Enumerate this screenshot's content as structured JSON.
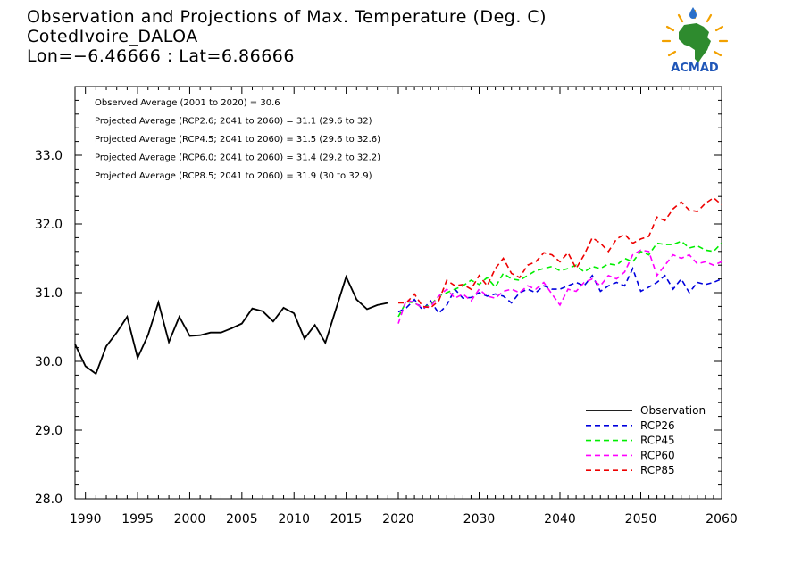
{
  "title": {
    "line1": "Observation and Projections of Max. Temperature (Deg. C)",
    "line2": "CotedIvoire_DALOA",
    "line3": "Lon=−6.46666 : Lat=6.86666"
  },
  "logo": {
    "text": "ACMAD",
    "icon": "africa-map-logo-icon"
  },
  "annotations": [
    "Observed Average (2001 to 2020) = 30.6",
    "Projected Average (RCP2.6; 2041 to 2060) = 31.1 (29.6 to 32)",
    "Projected Average (RCP4.5; 2041 to 2060) = 31.5 (29.6 to 32.6)",
    "Projected Average (RCP6.0; 2041 to 2060) = 31.4 (29.2 to 32.2)",
    "Projected Average (RCP8.5; 2041 to 2060) = 31.9 (30 to 32.9)"
  ],
  "chart_data": {
    "type": "line",
    "title": "Observation and Projections of Max. Temperature (Deg. C)",
    "xlim": [
      1989,
      2060
    ],
    "ylim": [
      28.0,
      34.0
    ],
    "x_ticks": [
      1990,
      1995,
      2000,
      2005,
      2010,
      2015,
      2020,
      2030,
      2040,
      2050,
      2060
    ],
    "y_ticks": [
      28.0,
      29.0,
      30.0,
      31.0,
      32.0,
      33.0
    ],
    "y_tick_labels": [
      "28.0",
      "29.0",
      "30.0",
      "31.0",
      "32.0",
      "33.0"
    ],
    "legend_position": "bottom-right",
    "series": [
      {
        "name": "Observation",
        "color": "#000000",
        "dash": "solid",
        "x": [
          1989,
          1990,
          1991,
          1992,
          1993,
          1994,
          1995,
          1996,
          1997,
          1998,
          1999,
          2000,
          2001,
          2002,
          2003,
          2004,
          2005,
          2006,
          2007,
          2008,
          2009,
          2010,
          2011,
          2012,
          2013,
          2014,
          2015,
          2016,
          2017,
          2018,
          2019
        ],
        "y": [
          30.25,
          29.93,
          29.82,
          30.22,
          30.42,
          30.65,
          30.05,
          30.38,
          30.86,
          30.28,
          30.65,
          30.37,
          30.38,
          30.42,
          30.42,
          30.48,
          30.55,
          30.77,
          30.73,
          30.58,
          30.78,
          30.7,
          30.33,
          30.53,
          30.27,
          30.75,
          31.23,
          30.9,
          30.76,
          30.82,
          30.85
        ]
      },
      {
        "name": "RCP26",
        "color": "#0000dd",
        "dash": "dashed",
        "x": [
          2020,
          2021,
          2022,
          2023,
          2024,
          2025,
          2026,
          2027,
          2028,
          2029,
          2030,
          2031,
          2032,
          2033,
          2034,
          2035,
          2036,
          2037,
          2038,
          2039,
          2040,
          2041,
          2042,
          2043,
          2044,
          2045,
          2046,
          2047,
          2048,
          2049,
          2050,
          2051,
          2052,
          2053,
          2054,
          2055,
          2056,
          2057,
          2058,
          2059,
          2060
        ],
        "y": [
          30.72,
          30.78,
          30.9,
          30.75,
          30.88,
          30.7,
          30.82,
          31.05,
          30.92,
          30.93,
          31.0,
          30.95,
          30.98,
          30.95,
          30.85,
          31.0,
          31.05,
          31.0,
          31.1,
          31.05,
          31.05,
          31.1,
          31.15,
          31.1,
          31.25,
          31.02,
          31.1,
          31.15,
          31.1,
          31.35,
          31.02,
          31.08,
          31.15,
          31.25,
          31.05,
          31.2,
          31.0,
          31.15,
          31.12,
          31.15,
          31.2
        ]
      },
      {
        "name": "RCP45",
        "color": "#00ee00",
        "dash": "dashed",
        "x": [
          2020,
          2021,
          2022,
          2023,
          2024,
          2025,
          2026,
          2027,
          2028,
          2029,
          2030,
          2031,
          2032,
          2033,
          2034,
          2035,
          2036,
          2037,
          2038,
          2039,
          2040,
          2041,
          2042,
          2043,
          2044,
          2045,
          2046,
          2047,
          2048,
          2049,
          2050,
          2051,
          2052,
          2053,
          2054,
          2055,
          2056,
          2057,
          2058,
          2059,
          2060
        ],
        "y": [
          30.65,
          30.87,
          30.85,
          30.78,
          30.82,
          30.95,
          31.0,
          31.05,
          31.1,
          31.18,
          31.12,
          31.22,
          31.08,
          31.28,
          31.2,
          31.18,
          31.25,
          31.32,
          31.35,
          31.38,
          31.32,
          31.35,
          31.4,
          31.3,
          31.38,
          31.35,
          31.42,
          31.4,
          31.5,
          31.45,
          31.6,
          31.55,
          31.72,
          31.7,
          31.7,
          31.75,
          31.65,
          31.68,
          31.62,
          31.6,
          31.72
        ]
      },
      {
        "name": "RCP60",
        "color": "#ff00ff",
        "dash": "dashed",
        "x": [
          2020,
          2021,
          2022,
          2023,
          2024,
          2025,
          2026,
          2027,
          2028,
          2029,
          2030,
          2031,
          2032,
          2033,
          2034,
          2035,
          2036,
          2037,
          2038,
          2039,
          2040,
          2041,
          2042,
          2043,
          2044,
          2045,
          2046,
          2047,
          2048,
          2049,
          2050,
          2051,
          2052,
          2053,
          2054,
          2055,
          2056,
          2057,
          2058,
          2059,
          2060
        ],
        "y": [
          30.55,
          30.9,
          30.85,
          30.78,
          30.8,
          30.95,
          31.05,
          30.92,
          30.98,
          30.88,
          31.05,
          30.95,
          30.92,
          31.02,
          31.05,
          31.0,
          31.1,
          31.05,
          31.15,
          30.98,
          30.82,
          31.05,
          31.02,
          31.15,
          31.2,
          31.1,
          31.25,
          31.2,
          31.3,
          31.55,
          31.62,
          31.6,
          31.25,
          31.4,
          31.55,
          31.5,
          31.55,
          31.42,
          31.45,
          31.4,
          31.45
        ]
      },
      {
        "name": "RCP85",
        "color": "#ee0000",
        "dash": "dashed",
        "x": [
          2020,
          2021,
          2022,
          2023,
          2024,
          2025,
          2026,
          2027,
          2028,
          2029,
          2030,
          2031,
          2032,
          2033,
          2034,
          2035,
          2036,
          2037,
          2038,
          2039,
          2040,
          2041,
          2042,
          2043,
          2044,
          2045,
          2046,
          2047,
          2048,
          2049,
          2050,
          2051,
          2052,
          2053,
          2054,
          2055,
          2056,
          2057,
          2058,
          2059,
          2060
        ],
        "y": [
          30.85,
          30.85,
          30.98,
          30.8,
          30.78,
          30.88,
          31.18,
          31.1,
          31.12,
          31.05,
          31.25,
          31.1,
          31.35,
          31.5,
          31.28,
          31.22,
          31.4,
          31.45,
          31.58,
          31.55,
          31.45,
          31.58,
          31.35,
          31.55,
          31.8,
          31.72,
          31.6,
          31.78,
          31.85,
          31.72,
          31.78,
          31.82,
          32.1,
          32.05,
          32.22,
          32.32,
          32.2,
          32.18,
          32.3,
          32.38,
          32.28
        ]
      }
    ]
  }
}
